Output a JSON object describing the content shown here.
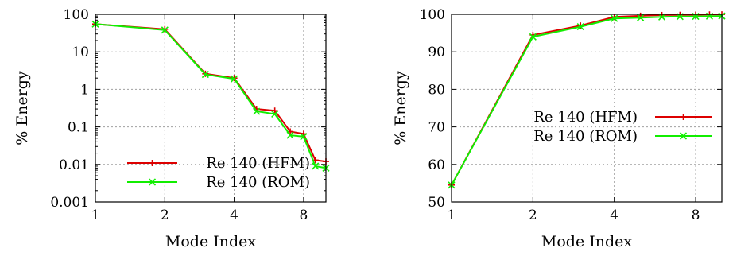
{
  "chart_data": [
    {
      "type": "line",
      "xlabel": "Mode Index",
      "ylabel": "% Energy",
      "xscale": "log2",
      "yscale": "log",
      "xlim": [
        1,
        10
      ],
      "ylim": [
        0.001,
        100
      ],
      "xticks": [
        {
          "v": 1,
          "label": "1"
        },
        {
          "v": 2,
          "label": "2"
        },
        {
          "v": 4,
          "label": "4"
        },
        {
          "v": 8,
          "label": "8"
        }
      ],
      "yticks": [
        {
          "v": 0.001,
          "label": "0.001"
        },
        {
          "v": 0.01,
          "label": "0.01"
        },
        {
          "v": 0.1,
          "label": "0.1"
        },
        {
          "v": 1,
          "label": "1"
        },
        {
          "v": 10,
          "label": "10"
        },
        {
          "v": 100,
          "label": "100"
        }
      ],
      "grid": true,
      "legend": "bottom-right",
      "x": [
        1,
        2,
        3,
        4,
        5,
        6,
        7,
        8,
        9,
        10
      ],
      "series": [
        {
          "name": "Re 140 (HFM)",
          "color": "#dd0000",
          "marker": "plus",
          "values": [
            55,
            40,
            2.6,
            2.0,
            0.3,
            0.27,
            0.075,
            0.065,
            0.013,
            0.012
          ]
        },
        {
          "name": "Re 140 (ROM)",
          "color": "#11ee00",
          "marker": "x",
          "values": [
            55,
            38,
            2.5,
            1.9,
            0.26,
            0.22,
            0.06,
            0.055,
            0.009,
            0.008
          ]
        }
      ]
    },
    {
      "type": "line",
      "xlabel": "Mode Index",
      "ylabel": "% Energy",
      "xscale": "log2",
      "yscale": "linear",
      "xlim": [
        1,
        10
      ],
      "ylim": [
        50,
        100
      ],
      "xticks": [
        {
          "v": 1,
          "label": "1"
        },
        {
          "v": 2,
          "label": "2"
        },
        {
          "v": 4,
          "label": "4"
        },
        {
          "v": 8,
          "label": "8"
        }
      ],
      "yticks": [
        {
          "v": 50,
          "label": "50"
        },
        {
          "v": 60,
          "label": "60"
        },
        {
          "v": 70,
          "label": "70"
        },
        {
          "v": 80,
          "label": "80"
        },
        {
          "v": 90,
          "label": "90"
        },
        {
          "v": 100,
          "label": "100"
        }
      ],
      "grid": true,
      "legend": "right",
      "x": [
        1,
        2,
        3,
        4,
        5,
        6,
        7,
        8,
        9,
        10
      ],
      "series": [
        {
          "name": "Re 140 (HFM)",
          "color": "#dd0000",
          "marker": "plus",
          "values": [
            54.5,
            94.5,
            97.0,
            99.3,
            99.6,
            99.8,
            99.85,
            99.9,
            99.95,
            99.97
          ]
        },
        {
          "name": "Re 140 (ROM)",
          "color": "#11ee00",
          "marker": "x",
          "values": [
            54.5,
            94.0,
            96.7,
            98.9,
            99.1,
            99.3,
            99.4,
            99.45,
            99.5,
            99.55
          ]
        }
      ]
    }
  ]
}
